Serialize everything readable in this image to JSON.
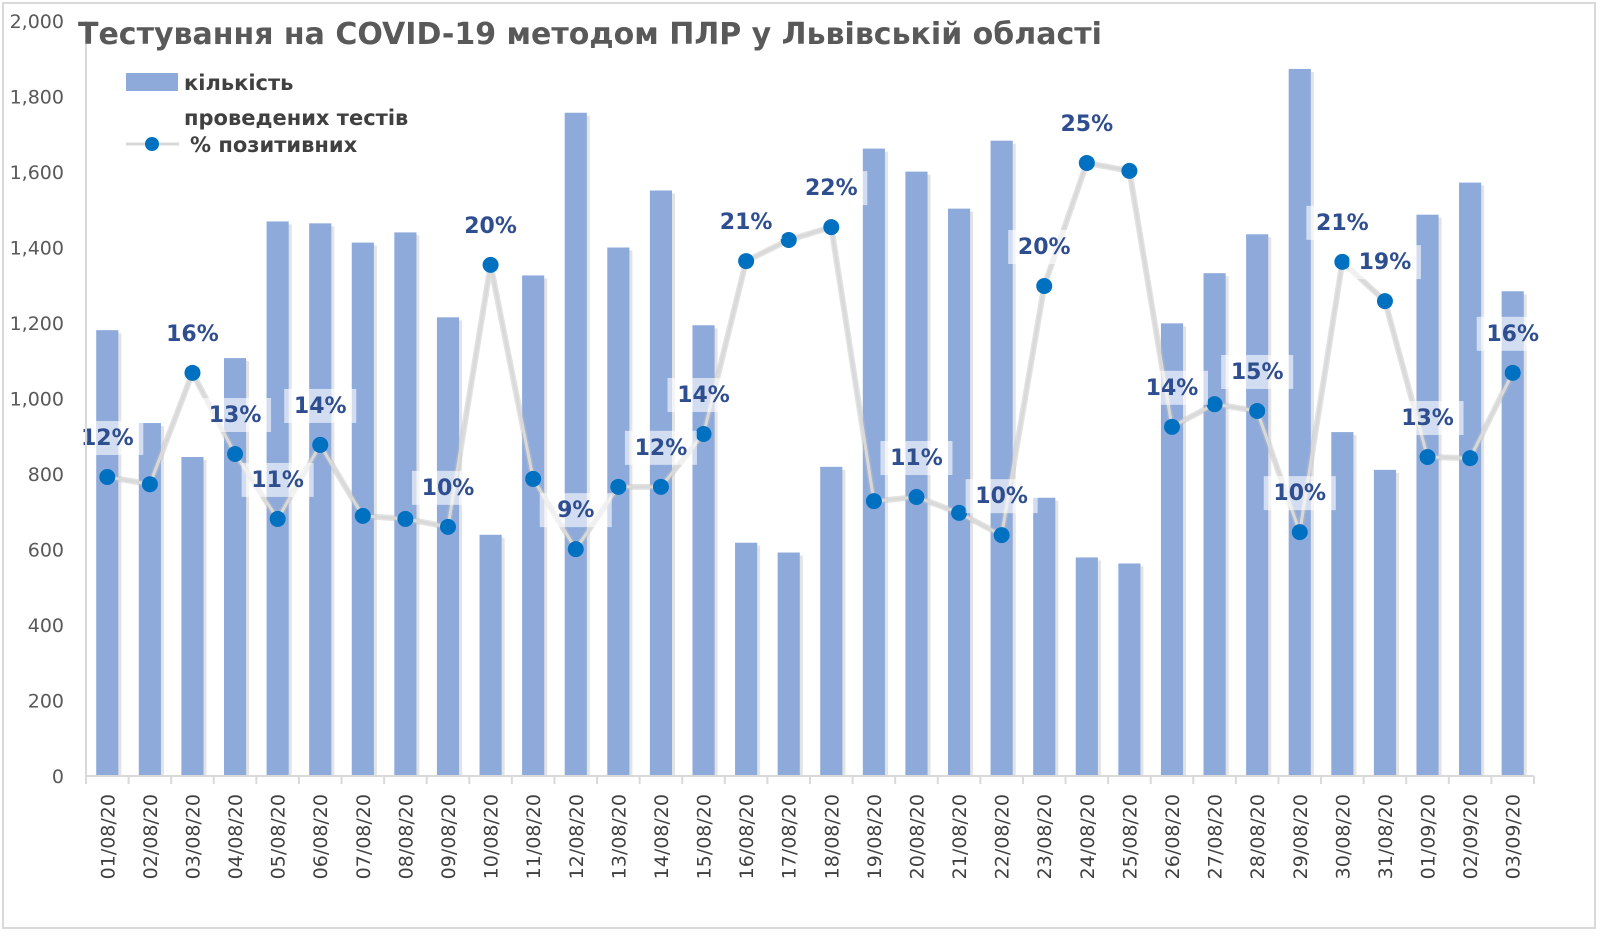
{
  "chart_data": {
    "type": "bar",
    "title": "Тестування на COVID-19 методом ПЛР у Львівській області",
    "xlabel": "",
    "ylabel": "",
    "ylim": [
      0,
      2000
    ],
    "yticks": [
      "0",
      "200",
      "400",
      "600",
      "800",
      "1,000",
      "1,200",
      "1,400",
      "1,600",
      "1,800",
      "2,000"
    ],
    "ytick_values": [
      0,
      200,
      400,
      600,
      800,
      1000,
      1200,
      1400,
      1600,
      1800,
      2000
    ],
    "grid": false,
    "legend_position": "top-left",
    "categories": [
      "01/08/20",
      "02/08/20",
      "03/08/20",
      "04/08/20",
      "05/08/20",
      "06/08/20",
      "07/08/20",
      "08/08/20",
      "09/08/20",
      "10/08/20",
      "11/08/20",
      "12/08/20",
      "13/08/20",
      "14/08/20",
      "15/08/20",
      "16/08/20",
      "17/08/20",
      "18/08/20",
      "19/08/20",
      "20/08/20",
      "21/08/20",
      "22/08/20",
      "23/08/20",
      "24/08/20",
      "25/08/20",
      "26/08/20",
      "27/08/20",
      "28/08/20",
      "29/08/20",
      "30/08/20",
      "31/08/20",
      "01/09/20",
      "02/09/20",
      "03/09/20"
    ],
    "series": [
      {
        "name": "кількість проведених тестів",
        "type": "bar",
        "color": "#8eaadb",
        "values": [
          1181,
          935,
          845,
          1107,
          1469,
          1464,
          1413,
          1440,
          1215,
          639,
          1326,
          1757,
          1400,
          1551,
          1194,
          618,
          592,
          819,
          1662,
          1601,
          1503,
          1683,
          737,
          579,
          563,
          1199,
          1332,
          1435,
          1873,
          911,
          811,
          1487,
          1572,
          1284
        ]
      },
      {
        "name": "% позитивних",
        "type": "line",
        "color": "#0070c0",
        "line_color": "#d9d9d9",
        "plot_values_on_left_axis": [
          792,
          773,
          1068,
          853,
          681,
          877,
          689,
          681,
          660,
          1354,
          787,
          601,
          766,
          766,
          906,
          1364,
          1420,
          1454,
          728,
          739,
          697,
          638,
          1298,
          1624,
          1603,
          925,
          985,
          967,
          646,
          1362,
          1258,
          845,
          842,
          1068
        ],
        "data_labels": [
          "12%",
          null,
          "16%",
          "13%",
          "11%",
          "14%",
          null,
          null,
          "10%",
          "20%",
          null,
          "9%",
          null,
          "12%",
          "14%",
          "21%",
          null,
          "22%",
          null,
          "11%",
          null,
          "10%",
          "20%",
          "25%",
          null,
          "14%",
          null,
          "15%",
          "10%",
          "21%",
          "19%",
          "13%",
          null,
          "16%"
        ]
      }
    ]
  },
  "legend": {
    "bar_label_line1": "кількість",
    "bar_label_line2": "проведених тестів",
    "line_label": "% позитивних"
  }
}
